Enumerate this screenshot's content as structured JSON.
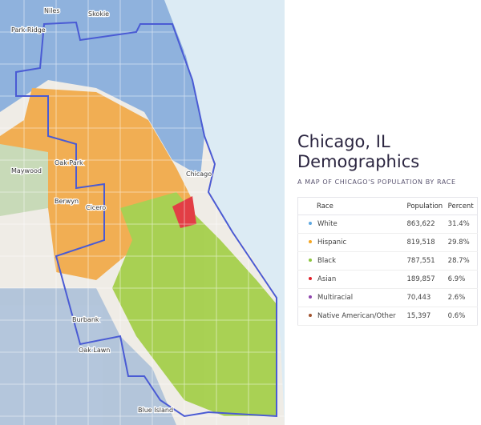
{
  "map": {
    "places": [
      "Niles",
      "Skokie",
      "Park Ridge",
      "Maywood",
      "Oak Park",
      "Berwyn",
      "Cicero",
      "Chicago",
      "Burbank",
      "Oak Lawn",
      "Blue Island"
    ]
  },
  "panel": {
    "title": "Chicago, IL Demographics",
    "subtitle": "A MAP OF CHICAGO'S POPULATION BY RACE",
    "table": {
      "header": [
        "Race",
        "Population",
        "Percent"
      ],
      "rows": [
        {
          "color": "#5fa8e0",
          "cells": [
            "White",
            "863,622",
            "31.4%"
          ]
        },
        {
          "color": "#f5a623",
          "cells": [
            "Hispanic",
            "819,518",
            "29.8%"
          ]
        },
        {
          "color": "#8cc63f",
          "cells": [
            "Black",
            "787,551",
            "28.7%"
          ]
        },
        {
          "color": "#e0202a",
          "cells": [
            "Asian",
            "189,857",
            "6.9%"
          ]
        },
        {
          "color": "#8e44ad",
          "cells": [
            "Multiracial",
            "70,443",
            "2.6%"
          ]
        },
        {
          "color": "#a0522d",
          "cells": [
            "Native American/Other",
            "15,397",
            "0.6%"
          ]
        }
      ]
    }
  }
}
